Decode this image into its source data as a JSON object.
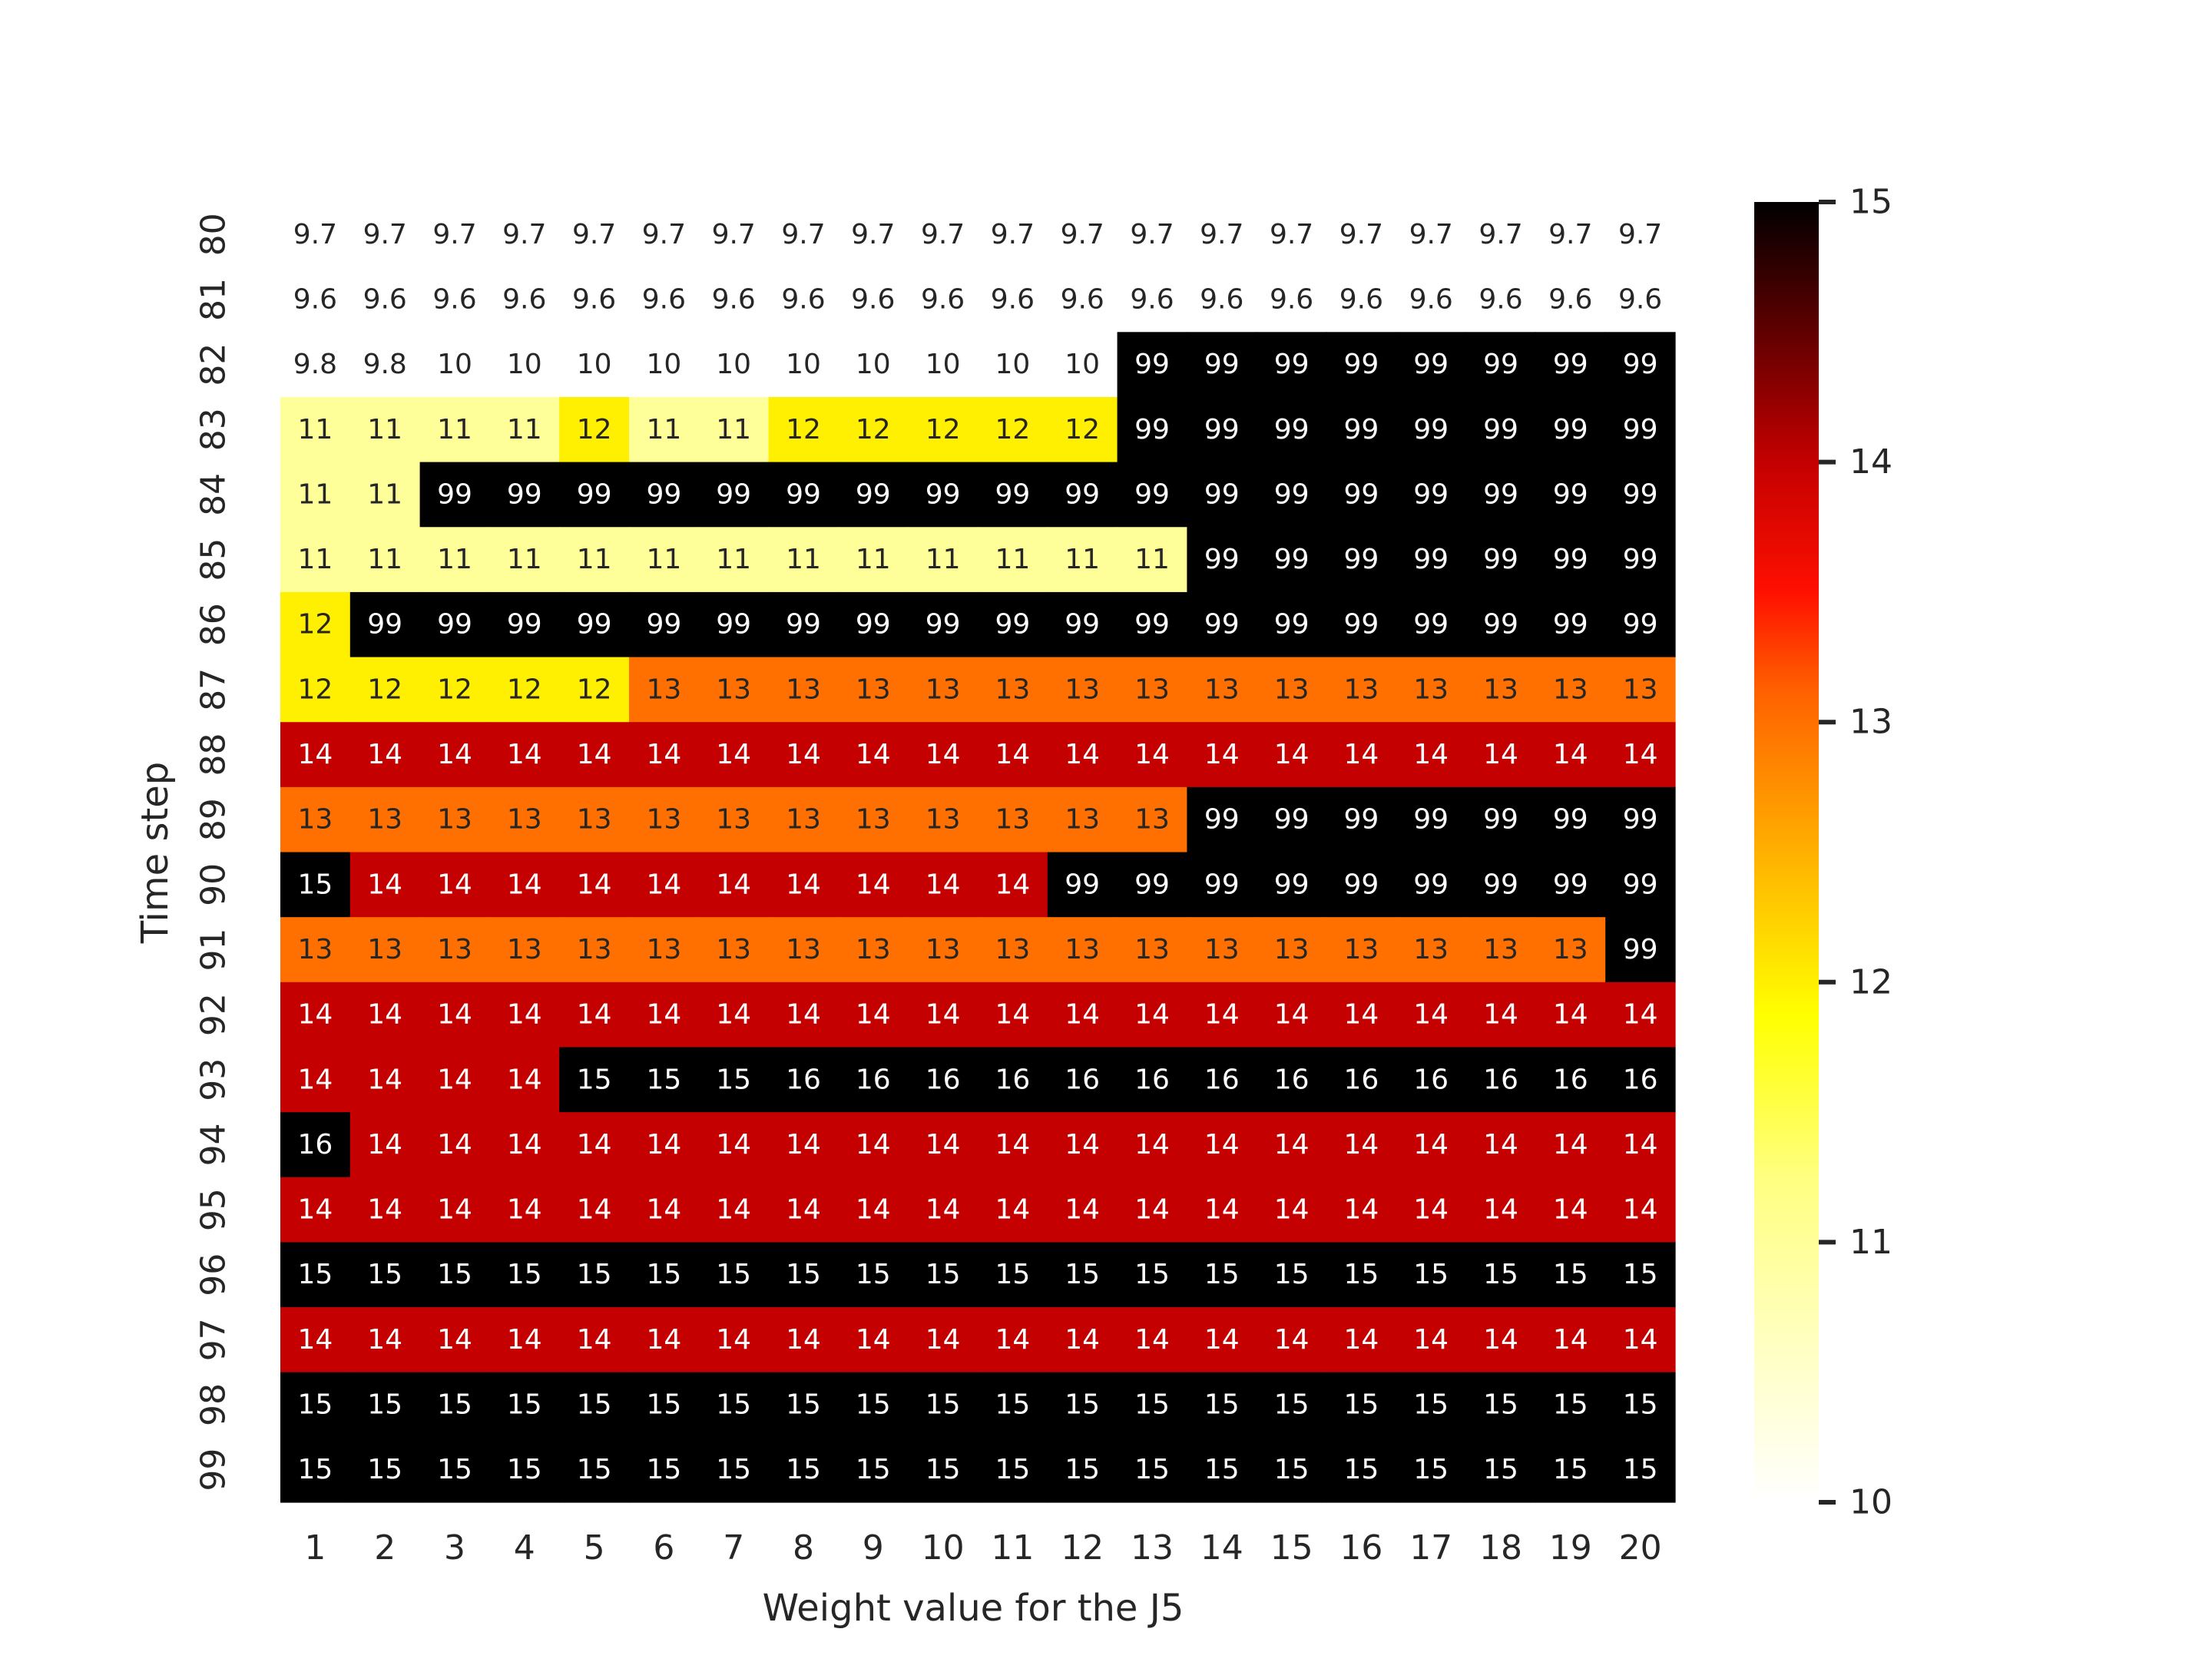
{
  "chart_data": {
    "type": "heatmap",
    "xlabel": "Weight value for the J5",
    "ylabel": "Time step",
    "x": [
      "1",
      "2",
      "3",
      "4",
      "5",
      "6",
      "7",
      "8",
      "9",
      "10",
      "11",
      "12",
      "13",
      "14",
      "15",
      "16",
      "17",
      "18",
      "19",
      "20"
    ],
    "y": [
      "80",
      "81",
      "82",
      "83",
      "84",
      "85",
      "86",
      "87",
      "88",
      "89",
      "90",
      "91",
      "92",
      "93",
      "94",
      "95",
      "96",
      "97",
      "98",
      "99"
    ],
    "values": [
      [
        9.7,
        9.7,
        9.7,
        9.7,
        9.7,
        9.7,
        9.7,
        9.7,
        9.7,
        9.7,
        9.7,
        9.7,
        9.7,
        9.7,
        9.7,
        9.7,
        9.7,
        9.7,
        9.7,
        9.7
      ],
      [
        9.6,
        9.6,
        9.6,
        9.6,
        9.6,
        9.6,
        9.6,
        9.6,
        9.6,
        9.6,
        9.6,
        9.6,
        9.6,
        9.6,
        9.6,
        9.6,
        9.6,
        9.6,
        9.6,
        9.6
      ],
      [
        9.8,
        9.8,
        10,
        10,
        10,
        10,
        10,
        10,
        10,
        10,
        10,
        10,
        99,
        99,
        99,
        99,
        99,
        99,
        99,
        99
      ],
      [
        11,
        11,
        11,
        11,
        12,
        11,
        11,
        12,
        12,
        12,
        12,
        12,
        99,
        99,
        99,
        99,
        99,
        99,
        99,
        99
      ],
      [
        11,
        11,
        99,
        99,
        99,
        99,
        99,
        99,
        99,
        99,
        99,
        99,
        99,
        99,
        99,
        99,
        99,
        99,
        99,
        99
      ],
      [
        11,
        11,
        11,
        11,
        11,
        11,
        11,
        11,
        11,
        11,
        11,
        11,
        11,
        99,
        99,
        99,
        99,
        99,
        99,
        99
      ],
      [
        12,
        99,
        99,
        99,
        99,
        99,
        99,
        99,
        99,
        99,
        99,
        99,
        99,
        99,
        99,
        99,
        99,
        99,
        99,
        99
      ],
      [
        12,
        12,
        12,
        12,
        12,
        13,
        13,
        13,
        13,
        13,
        13,
        13,
        13,
        13,
        13,
        13,
        13,
        13,
        13,
        13
      ],
      [
        14,
        14,
        14,
        14,
        14,
        14,
        14,
        14,
        14,
        14,
        14,
        14,
        14,
        14,
        14,
        14,
        14,
        14,
        14,
        14
      ],
      [
        13,
        13,
        13,
        13,
        13,
        13,
        13,
        13,
        13,
        13,
        13,
        13,
        13,
        99,
        99,
        99,
        99,
        99,
        99,
        99
      ],
      [
        15,
        14,
        14,
        14,
        14,
        14,
        14,
        14,
        14,
        14,
        14,
        99,
        99,
        99,
        99,
        99,
        99,
        99,
        99,
        99
      ],
      [
        13,
        13,
        13,
        13,
        13,
        13,
        13,
        13,
        13,
        13,
        13,
        13,
        13,
        13,
        13,
        13,
        13,
        13,
        13,
        99
      ],
      [
        14,
        14,
        14,
        14,
        14,
        14,
        14,
        14,
        14,
        14,
        14,
        14,
        14,
        14,
        14,
        14,
        14,
        14,
        14,
        14
      ],
      [
        14,
        14,
        14,
        14,
        15,
        15,
        15,
        16,
        16,
        16,
        16,
        16,
        16,
        16,
        16,
        16,
        16,
        16,
        16,
        16
      ],
      [
        16,
        14,
        14,
        14,
        14,
        14,
        14,
        14,
        14,
        14,
        14,
        14,
        14,
        14,
        14,
        14,
        14,
        14,
        14,
        14
      ],
      [
        14,
        14,
        14,
        14,
        14,
        14,
        14,
        14,
        14,
        14,
        14,
        14,
        14,
        14,
        14,
        14,
        14,
        14,
        14,
        14
      ],
      [
        15,
        15,
        15,
        15,
        15,
        15,
        15,
        15,
        15,
        15,
        15,
        15,
        15,
        15,
        15,
        15,
        15,
        15,
        15,
        15
      ],
      [
        14,
        14,
        14,
        14,
        14,
        14,
        14,
        14,
        14,
        14,
        14,
        14,
        14,
        14,
        14,
        14,
        14,
        14,
        14,
        14
      ],
      [
        15,
        15,
        15,
        15,
        15,
        15,
        15,
        15,
        15,
        15,
        15,
        15,
        15,
        15,
        15,
        15,
        15,
        15,
        15,
        15
      ],
      [
        15,
        15,
        15,
        15,
        15,
        15,
        15,
        15,
        15,
        15,
        15,
        15,
        15,
        15,
        15,
        15,
        15,
        15,
        15,
        15
      ]
    ],
    "colorbar": {
      "range": [
        10,
        15
      ],
      "ticks": [
        "10",
        "11",
        "12",
        "13",
        "14",
        "15"
      ],
      "colormap": "hot_r"
    },
    "grid": false,
    "legend": "none"
  }
}
